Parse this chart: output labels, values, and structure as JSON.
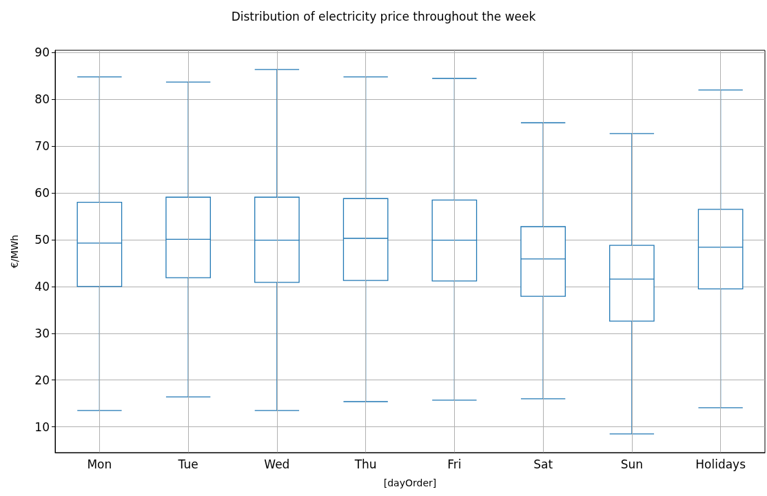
{
  "chart_data": {
    "type": "box",
    "title": "Distribution of electricity price throughout the week",
    "xlabel": "[dayOrder]",
    "ylabel": "€/MWh",
    "categories": [
      "Mon",
      "Tue",
      "Wed",
      "Thu",
      "Fri",
      "Sat",
      "Sun",
      "Holidays"
    ],
    "boxes": [
      {
        "low": 13.5,
        "q1": 40.0,
        "median": 49.3,
        "q3": 58.0,
        "high": 84.8
      },
      {
        "low": 16.4,
        "q1": 41.9,
        "median": 50.1,
        "q3": 59.1,
        "high": 83.7
      },
      {
        "low": 13.5,
        "q1": 40.9,
        "median": 49.9,
        "q3": 59.1,
        "high": 86.4
      },
      {
        "low": 15.4,
        "q1": 41.3,
        "median": 50.3,
        "q3": 58.8,
        "high": 84.8
      },
      {
        "low": 15.7,
        "q1": 41.2,
        "median": 49.9,
        "q3": 58.5,
        "high": 84.5
      },
      {
        "low": 16.0,
        "q1": 37.9,
        "median": 45.9,
        "q3": 52.8,
        "high": 75.0
      },
      {
        "low": 8.5,
        "q1": 32.6,
        "median": 41.6,
        "q3": 48.8,
        "high": 72.7
      },
      {
        "low": 14.1,
        "q1": 39.5,
        "median": 48.4,
        "q3": 56.5,
        "high": 82.0
      }
    ],
    "color": "#1f77b4",
    "ylim": [
      4.5,
      90.5
    ],
    "yticks": [
      10,
      20,
      30,
      40,
      50,
      60,
      70,
      80,
      90
    ],
    "grid": true
  }
}
